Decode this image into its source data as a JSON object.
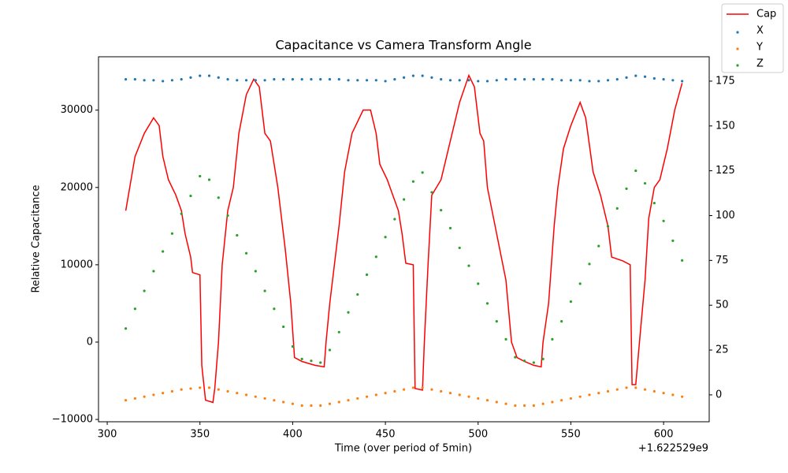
{
  "chart_data": {
    "type": "combo",
    "title": "Capacitance vs Camera Transform Angle",
    "x_label": "Time (over period of 5min)",
    "x_offset_label": "+1.622529e9",
    "y_label": "Relative Capacitance",
    "xlim": [
      295.3,
      624.6
    ],
    "xticks": [
      300,
      350,
      400,
      450,
      500,
      550,
      600
    ],
    "ylim": [
      -10300,
      36900
    ],
    "yticks": [
      {
        "value": -10000,
        "label": "−10000"
      },
      0,
      10000,
      20000,
      30000
    ],
    "y2lim": [
      -15,
      188.6
    ],
    "y2ticks": [
      0,
      25,
      50,
      75,
      100,
      125,
      150,
      175
    ],
    "x": [
      310,
      315,
      320,
      325,
      330,
      335,
      340,
      345,
      350,
      355,
      360,
      365,
      370,
      375,
      380,
      385,
      390,
      395,
      400,
      405,
      410,
      415,
      420,
      425,
      430,
      435,
      440,
      445,
      450,
      455,
      460,
      465,
      470,
      475,
      480,
      485,
      490,
      495,
      500,
      505,
      510,
      515,
      520,
      525,
      530,
      535,
      540,
      545,
      550,
      555,
      560,
      565,
      570,
      575,
      580,
      585,
      590,
      595,
      600,
      605,
      610
    ],
    "series": [
      {
        "name": "Cap",
        "type": "line",
        "color": "#ff0000",
        "x": [
          310,
          315,
          320,
          325,
          328,
          330,
          333,
          337,
          340,
          342,
          345,
          346,
          350,
          351,
          353,
          357,
          358,
          360,
          362,
          365,
          368,
          371,
          375,
          379,
          382,
          385,
          388,
          392,
          396,
          399,
          401,
          405,
          412,
          417,
          418,
          420,
          425,
          428,
          432,
          438,
          442,
          445,
          447,
          451,
          454,
          457,
          459,
          461,
          465,
          466,
          470,
          471,
          473,
          475,
          480,
          485,
          490,
          495,
          498,
          501,
          503,
          505,
          510,
          515,
          518,
          521,
          525,
          530,
          534,
          535,
          538,
          541,
          543,
          546,
          550,
          555,
          558,
          562,
          566,
          570,
          572,
          578,
          582,
          583,
          585,
          587,
          590,
          592,
          595,
          598,
          602,
          606,
          610
        ],
        "values": [
          17000,
          24000,
          27000,
          29000,
          28000,
          24000,
          21000,
          19000,
          17000,
          14000,
          11000,
          9000,
          8700,
          -3000,
          -7500,
          -7800,
          -6000,
          0,
          10000,
          17000,
          20000,
          27000,
          32000,
          34000,
          33000,
          27000,
          26000,
          20000,
          12000,
          5000,
          -2000,
          -2500,
          -3000,
          -3200,
          0,
          5000,
          15000,
          22000,
          27000,
          30000,
          30000,
          27000,
          23000,
          21000,
          19000,
          17000,
          14000,
          10200,
          10000,
          -6000,
          -6200,
          0,
          10000,
          19000,
          21000,
          26000,
          31000,
          34500,
          33000,
          27000,
          26000,
          20000,
          14000,
          8000,
          0,
          -2000,
          -2500,
          -3000,
          -3200,
          0,
          5000,
          15000,
          20000,
          25000,
          28000,
          31000,
          29000,
          22000,
          19000,
          15000,
          11000,
          10500,
          10000,
          -5500,
          -5500,
          0,
          8000,
          16000,
          20000,
          21000,
          25000,
          30000,
          33500
        ]
      },
      {
        "name": "X",
        "type": "scatter",
        "axis": "y2",
        "color": "#1f77b4",
        "values": [
          176,
          176,
          175.5,
          175.5,
          175,
          175.5,
          176,
          177,
          178,
          178,
          177,
          176,
          175.5,
          175.5,
          175.5,
          175.5,
          176,
          176,
          176,
          176,
          176,
          176,
          176,
          176,
          175.5,
          175.5,
          175.5,
          175.5,
          175,
          176,
          177,
          178,
          178,
          177,
          176,
          175.5,
          175.5,
          175.5,
          175,
          175,
          175.5,
          176,
          176,
          176,
          176,
          176,
          176,
          175.5,
          175.5,
          175.5,
          175,
          175,
          175.5,
          176,
          177,
          178,
          177.5,
          176.5,
          176,
          175.5,
          175
        ]
      },
      {
        "name": "Y",
        "type": "scatter",
        "axis": "y2",
        "color": "#ff7f0e",
        "values": [
          -3,
          -2,
          -1,
          0,
          1,
          2,
          3,
          3.5,
          4,
          4,
          3,
          2,
          1,
          0,
          -1,
          -2,
          -3,
          -4,
          -5,
          -6,
          -6,
          -6,
          -5,
          -4,
          -3,
          -2,
          -1,
          0,
          1,
          2,
          3,
          4,
          4,
          3,
          2,
          1,
          0,
          -1,
          -2,
          -3,
          -4,
          -5,
          -6,
          -6,
          -6,
          -5,
          -4,
          -3,
          -2,
          -1,
          0,
          1,
          2,
          3,
          4,
          4,
          3,
          2,
          1,
          0,
          -1
        ]
      },
      {
        "name": "Z",
        "type": "scatter",
        "axis": "y2",
        "color": "#2ca02c",
        "values": [
          37,
          48,
          58,
          69,
          80,
          90,
          101,
          111,
          122,
          120,
          110,
          100,
          89,
          79,
          69,
          58,
          48,
          38,
          27,
          20,
          19,
          18,
          25,
          35,
          46,
          56,
          67,
          77,
          88,
          98,
          109,
          119,
          124,
          113,
          103,
          93,
          82,
          72,
          62,
          51,
          41,
          31,
          21,
          19,
          18,
          20,
          31,
          41,
          52,
          62,
          73,
          83,
          94,
          104,
          115,
          125,
          118,
          107,
          97,
          86,
          75
        ]
      }
    ]
  }
}
